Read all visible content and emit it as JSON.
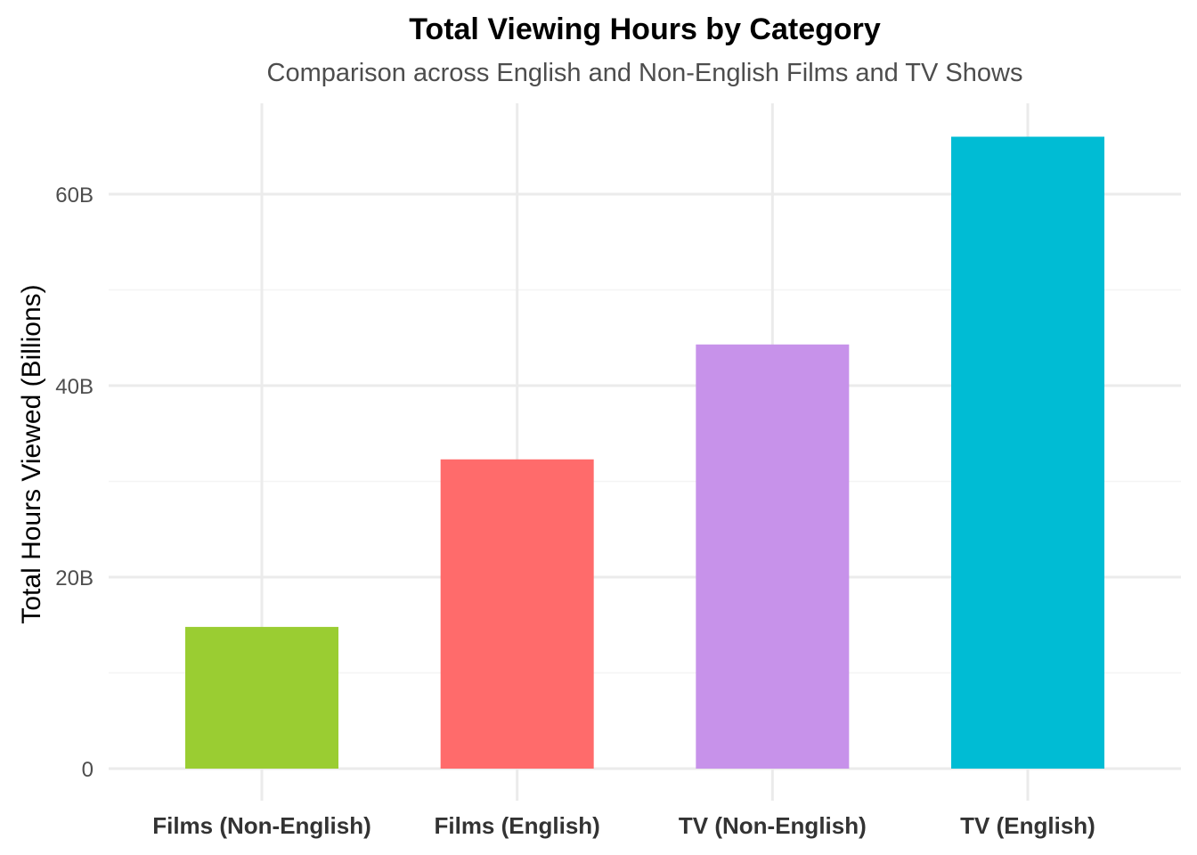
{
  "chart_data": {
    "type": "bar",
    "title": "Total Viewing Hours by Category",
    "subtitle": "Comparison across English and Non-English Films and TV Shows",
    "xlabel": "",
    "ylabel": "Total Hours Viewed (Billions)",
    "categories": [
      "Films (Non-English)",
      "Films (English)",
      "TV (Non-English)",
      "TV (English)"
    ],
    "values": [
      14.8,
      32.3,
      44.3,
      66.0
    ],
    "colors": [
      "#9ACD32",
      "#FF6B6B",
      "#C792EA",
      "#00BCD4"
    ],
    "ylim": [
      0,
      69.3
    ],
    "yticks": [
      0,
      20,
      40,
      60
    ],
    "ytick_labels": [
      "0",
      "20B",
      "40B",
      "60B"
    ],
    "grid": true,
    "legend": "none"
  }
}
